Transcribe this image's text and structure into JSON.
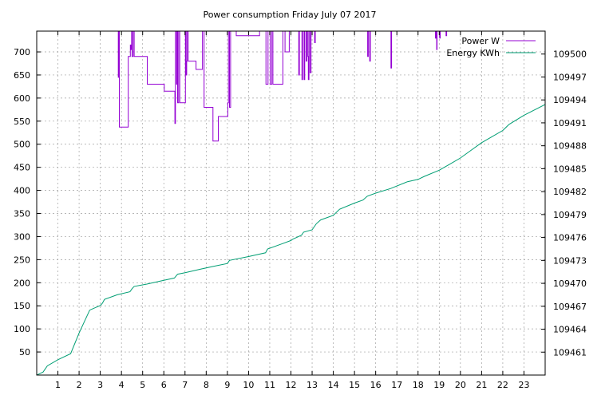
{
  "chart_data": {
    "type": "line",
    "title": "Power consumption Friday July 07 2017",
    "xlabel": "",
    "ylabel": "",
    "y2label": "",
    "grid": true,
    "legend_position": "top-right",
    "x_range": [
      0,
      24
    ],
    "y_range": [
      0,
      745
    ],
    "y2_range": [
      109458.0,
      109503.0
    ],
    "x_ticks": [
      1,
      2,
      3,
      4,
      5,
      6,
      7,
      8,
      9,
      10,
      11,
      12,
      13,
      14,
      15,
      16,
      17,
      18,
      19,
      20,
      21,
      22,
      23
    ],
    "y_ticks": [
      50,
      100,
      150,
      200,
      250,
      300,
      350,
      400,
      450,
      500,
      550,
      600,
      650,
      700
    ],
    "y2_ticks": [
      109461,
      109464,
      109467,
      109470,
      109473,
      109476,
      109479,
      109482,
      109485,
      109488,
      109491,
      109494,
      109497,
      109500
    ],
    "series": [
      {
        "name": "Power W",
        "axis": "y",
        "color": "#9400d3",
        "step": true,
        "points": [
          [
            3.8,
            745
          ],
          [
            3.85,
            645
          ],
          [
            3.88,
            745
          ],
          [
            3.9,
            537
          ],
          [
            4.3,
            537
          ],
          [
            4.32,
            690
          ],
          [
            4.4,
            690
          ],
          [
            4.42,
            715
          ],
          [
            4.45,
            705
          ],
          [
            4.48,
            745
          ],
          [
            4.5,
            690
          ],
          [
            4.55,
            745
          ],
          [
            4.6,
            690
          ],
          [
            5.2,
            690
          ],
          [
            5.22,
            630
          ],
          [
            6.0,
            630
          ],
          [
            6.02,
            615
          ],
          [
            6.5,
            615
          ],
          [
            6.52,
            545
          ],
          [
            6.55,
            745
          ],
          [
            6.6,
            630
          ],
          [
            6.62,
            745
          ],
          [
            6.65,
            590
          ],
          [
            6.7,
            745
          ],
          [
            6.75,
            590
          ],
          [
            7.0,
            590
          ],
          [
            7.02,
            745
          ],
          [
            7.05,
            650
          ],
          [
            7.08,
            680
          ],
          [
            7.1,
            745
          ],
          [
            7.15,
            680
          ],
          [
            7.5,
            680
          ],
          [
            7.52,
            662
          ],
          [
            7.8,
            662
          ],
          [
            7.82,
            745
          ],
          [
            7.9,
            580
          ],
          [
            8.3,
            580
          ],
          [
            8.32,
            507
          ],
          [
            8.55,
            507
          ],
          [
            8.57,
            560
          ],
          [
            9.0,
            560
          ],
          [
            9.02,
            590
          ],
          [
            9.05,
            745
          ],
          [
            9.1,
            580
          ],
          [
            9.15,
            745
          ],
          [
            9.2,
            745
          ],
          [
            9.4,
            745
          ],
          [
            9.42,
            735
          ],
          [
            10.5,
            735
          ],
          [
            10.52,
            745
          ],
          [
            10.8,
            745
          ],
          [
            10.82,
            630
          ],
          [
            10.9,
            630
          ],
          [
            10.92,
            745
          ],
          [
            11.0,
            745
          ],
          [
            11.02,
            630
          ],
          [
            11.1,
            745
          ],
          [
            11.15,
            630
          ],
          [
            11.6,
            630
          ],
          [
            11.62,
            745
          ],
          [
            11.7,
            745
          ],
          [
            11.72,
            700
          ],
          [
            11.9,
            700
          ],
          [
            11.92,
            745
          ],
          [
            12.35,
            745
          ],
          [
            12.37,
            650
          ],
          [
            12.4,
            745
          ],
          [
            12.5,
            745
          ],
          [
            12.52,
            640
          ],
          [
            12.55,
            745
          ],
          [
            12.6,
            745
          ],
          [
            12.62,
            640
          ],
          [
            12.65,
            745
          ],
          [
            12.7,
            745
          ],
          [
            12.72,
            680
          ],
          [
            12.75,
            745
          ],
          [
            12.8,
            690
          ],
          [
            12.82,
            640
          ],
          [
            12.85,
            745
          ],
          [
            12.9,
            655
          ],
          [
            12.95,
            745
          ],
          [
            13.1,
            745
          ],
          [
            13.12,
            720
          ],
          [
            13.15,
            745
          ],
          [
            15.6,
            745
          ],
          [
            15.62,
            690
          ],
          [
            15.65,
            745
          ],
          [
            15.7,
            745
          ],
          [
            15.72,
            680
          ],
          [
            15.75,
            745
          ],
          [
            16.7,
            745
          ],
          [
            16.72,
            665
          ],
          [
            16.75,
            745
          ],
          [
            18.8,
            745
          ],
          [
            18.82,
            730
          ],
          [
            18.85,
            745
          ],
          [
            18.88,
            705
          ],
          [
            18.9,
            745
          ],
          [
            19.0,
            745
          ],
          [
            19.02,
            730
          ],
          [
            19.05,
            745
          ],
          [
            19.3,
            745
          ],
          [
            19.32,
            735
          ],
          [
            19.35,
            745
          ]
        ]
      },
      {
        "name": "Energy KWh",
        "axis": "y2",
        "color": "#009e73",
        "step": false,
        "points": [
          [
            0,
            109458.0
          ],
          [
            0.3,
            109458.4
          ],
          [
            0.5,
            109459.2
          ],
          [
            1.0,
            109460.0
          ],
          [
            1.6,
            109460.8
          ],
          [
            2.0,
            109463.5
          ],
          [
            2.5,
            109466.5
          ],
          [
            3.0,
            109467.1
          ],
          [
            3.1,
            109467.4
          ],
          [
            3.2,
            109467.9
          ],
          [
            3.8,
            109468.5
          ],
          [
            4.4,
            109468.9
          ],
          [
            4.5,
            109469.3
          ],
          [
            4.6,
            109469.6
          ],
          [
            5.2,
            109469.9
          ],
          [
            6.0,
            109470.4
          ],
          [
            6.5,
            109470.7
          ],
          [
            6.65,
            109471.2
          ],
          [
            7.0,
            109471.4
          ],
          [
            7.8,
            109471.9
          ],
          [
            8.3,
            109472.2
          ],
          [
            9.0,
            109472.6
          ],
          [
            9.1,
            109473.0
          ],
          [
            10.0,
            109473.5
          ],
          [
            10.8,
            109474.0
          ],
          [
            10.9,
            109474.5
          ],
          [
            11.6,
            109475.2
          ],
          [
            12.0,
            109475.6
          ],
          [
            12.1,
            109475.8
          ],
          [
            12.5,
            109476.3
          ],
          [
            12.6,
            109476.7
          ],
          [
            13.0,
            109477.0
          ],
          [
            13.2,
            109477.8
          ],
          [
            13.4,
            109478.3
          ],
          [
            14.0,
            109478.9
          ],
          [
            14.3,
            109479.7
          ],
          [
            15.0,
            109480.5
          ],
          [
            15.4,
            109480.9
          ],
          [
            15.6,
            109481.4
          ],
          [
            16.0,
            109481.8
          ],
          [
            16.7,
            109482.4
          ],
          [
            17.5,
            109483.3
          ],
          [
            18.0,
            109483.6
          ],
          [
            18.3,
            109484.0
          ],
          [
            19.0,
            109484.8
          ],
          [
            19.5,
            109485.6
          ],
          [
            20.0,
            109486.4
          ],
          [
            20.5,
            109487.4
          ],
          [
            21.0,
            109488.4
          ],
          [
            21.5,
            109489.2
          ],
          [
            22.0,
            109490.0
          ],
          [
            22.3,
            109490.8
          ],
          [
            23.0,
            109492.0
          ],
          [
            24,
            109493.4
          ]
        ]
      }
    ]
  }
}
